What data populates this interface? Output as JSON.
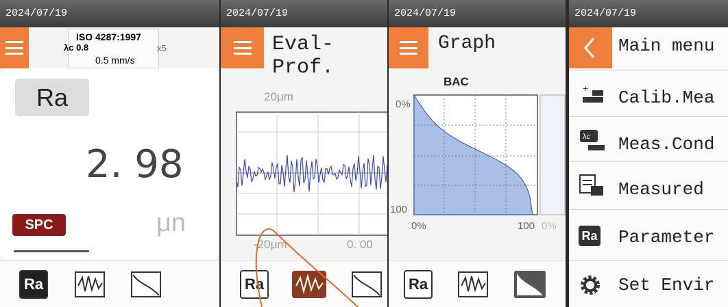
{
  "panels": [
    {
      "date": "2024/07/19",
      "standard": "ISO 4287:1997",
      "cutoff": "λc 0.8",
      "range": "x5",
      "speed": "0.5 mm/s",
      "parameter": "Ra",
      "value": "2. 98",
      "badge": "SPC",
      "unit": "μn",
      "tab": "Ra"
    },
    {
      "date": "2024/07/19",
      "title": "Eval-Prof.",
      "y_top": "20μm",
      "y_bottom": "-20μm",
      "x_start": "0. 00",
      "tab": "Ra"
    },
    {
      "date": "2024/07/19",
      "title": "Graph",
      "chart_title": "BAC",
      "y_top": "0%",
      "y_bottom": "100",
      "x_start": "0%",
      "x_end": "100",
      "x_next": "0%",
      "tab": "Ra"
    },
    {
      "date": "2024/07/19",
      "title": "Main menu",
      "items": [
        "Calib.Mea",
        "Meas.Cond",
        "Measured",
        "Parameter",
        "Set Envir"
      ],
      "param_icon": "Ra"
    }
  ]
}
